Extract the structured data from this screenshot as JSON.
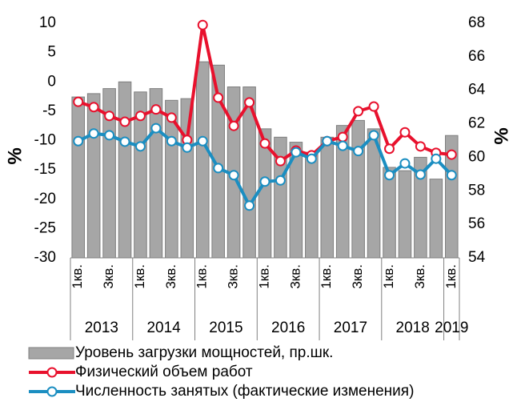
{
  "chart_data": {
    "type": "bar_line_combo",
    "y_label": "%",
    "y2_label": "%",
    "categories": [
      "1кв.",
      null,
      "3кв.",
      null,
      "1кв.",
      null,
      "3кв.",
      null,
      "1кв.",
      null,
      "3кв.",
      null,
      "1кв.",
      null,
      "3кв.",
      null,
      "1кв.",
      null,
      "3кв.",
      null,
      "1кв.",
      null,
      "3кв.",
      null,
      "1кв."
    ],
    "groups": [
      "2013",
      "2014",
      "2015",
      "2016",
      "2017",
      "2018",
      "2019"
    ],
    "series": [
      {
        "name": "Уровень загрузки мощностей, пр.шк.",
        "type": "bar",
        "axis": "y2",
        "color": "#a6a6a6",
        "values": [
          63.6,
          63.8,
          64.1,
          64.5,
          63.9,
          64.1,
          63.4,
          63.5,
          65.7,
          65.5,
          64.2,
          64.2,
          61.7,
          61.2,
          60.9,
          60.3,
          61.2,
          61.9,
          62.2,
          61.7,
          59.4,
          59.2,
          60.0,
          58.7,
          61.3
        ]
      },
      {
        "name": "Физический объем работ",
        "type": "line",
        "color": "#e8112d",
        "values": [
          -3.4,
          -4.3,
          -5.8,
          -6.8,
          -5.8,
          -4.7,
          -6.1,
          -9.9,
          9.7,
          -2.7,
          -7.5,
          -3.5,
          -10.5,
          -13.5,
          -11.7,
          -12.5,
          -10.1,
          -9.4,
          -5.0,
          -4.2,
          -11.4,
          -8.6,
          -11.0,
          -12.1,
          -12.4
        ]
      },
      {
        "name": "Численность занятых (фактические изменения)",
        "type": "line",
        "color": "#1b8ec1",
        "values": [
          -10.1,
          -8.8,
          -9.1,
          -10.2,
          -11.0,
          -7.9,
          -10.1,
          -11.2,
          -10.1,
          -14.7,
          -15.9,
          -21.1,
          -17.0,
          -16.8,
          -12.0,
          -13.1,
          -10.1,
          -10.9,
          -11.8,
          -9.1,
          -15.9,
          -13.9,
          -15.8,
          -13.1,
          -15.9
        ]
      }
    ],
    "ylim": [
      -30,
      10
    ],
    "yticks": [
      -30,
      -25,
      -20,
      -15,
      -10,
      -5,
      0,
      5,
      10
    ],
    "y2lim": [
      54,
      68
    ],
    "y2ticks": [
      54,
      56,
      58,
      60,
      62,
      64,
      66,
      68
    ]
  }
}
